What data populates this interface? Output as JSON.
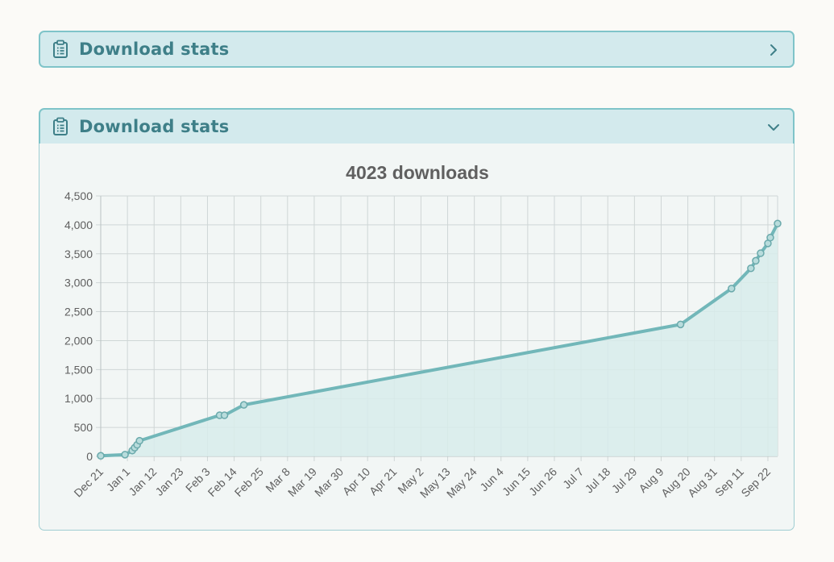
{
  "panels": [
    {
      "title": "Download stats",
      "state": "collapsed",
      "icon": "clipboard-list-icon",
      "toggle_icon": "chevron-right-icon"
    },
    {
      "title": "Download stats",
      "state": "expanded",
      "icon": "clipboard-list-icon",
      "toggle_icon": "chevron-down-icon"
    }
  ],
  "colors": {
    "header_bg": "#d3eaed",
    "header_border": "#7fc4c9",
    "header_text": "#3e7f88",
    "line": "#72b7b9",
    "area_fill": "#d8eceb",
    "grid": "#cfd6d6"
  },
  "chart_data": {
    "type": "area",
    "title": "4023 downloads",
    "xlabel": "",
    "ylabel": "",
    "ylim": [
      0,
      4500
    ],
    "yticks": [
      0,
      500,
      1000,
      1500,
      2000,
      2500,
      3000,
      3500,
      4000,
      4500
    ],
    "ytick_labels": [
      "0",
      "500",
      "1,000",
      "1,500",
      "2,000",
      "2,500",
      "3,000",
      "3,500",
      "4,000",
      "4,500"
    ],
    "x_range": [
      "Dec 21",
      "Sep 26"
    ],
    "xtick_labels": [
      "Dec 21",
      "Jan 1",
      "Jan 12",
      "Jan 23",
      "Feb 3",
      "Feb 14",
      "Feb 25",
      "Mar 8",
      "Mar 19",
      "Mar 30",
      "Apr 10",
      "Apr 21",
      "May 2",
      "May 13",
      "May 24",
      "Jun 4",
      "Jun 15",
      "Jun 26",
      "Jul 7",
      "Jul 18",
      "Jul 29",
      "Aug 9",
      "Aug 20",
      "Aug 31",
      "Sep 11",
      "Sep 22"
    ],
    "grid": true,
    "legend": "none",
    "points": [
      {
        "x": "Dec 21",
        "y": 10
      },
      {
        "x": "Dec 31",
        "y": 30
      },
      {
        "x": "Jan 3",
        "y": 100
      },
      {
        "x": "Jan 4",
        "y": 150
      },
      {
        "x": "Jan 5",
        "y": 200
      },
      {
        "x": "Jan 6",
        "y": 270
      },
      {
        "x": "Feb 8",
        "y": 710
      },
      {
        "x": "Feb 10",
        "y": 710
      },
      {
        "x": "Feb 18",
        "y": 890
      },
      {
        "x": "Aug 17",
        "y": 2280
      },
      {
        "x": "Sep 7",
        "y": 2900
      },
      {
        "x": "Sep 15",
        "y": 3250
      },
      {
        "x": "Sep 17",
        "y": 3380
      },
      {
        "x": "Sep 19",
        "y": 3510
      },
      {
        "x": "Sep 22",
        "y": 3680
      },
      {
        "x": "Sep 23",
        "y": 3780
      },
      {
        "x": "Sep 26",
        "y": 4023
      }
    ]
  }
}
